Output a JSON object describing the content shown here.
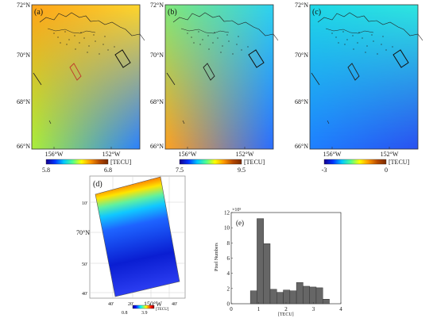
{
  "panels": [
    {
      "label": "(a)",
      "lat_ticks": [
        "72°N",
        "70°N",
        "68°N",
        "66°N"
      ],
      "lon_ticks": [
        "156°W",
        "152°W"
      ],
      "colorbar": {
        "min": "5.8",
        "max": "6.8",
        "unit": "[TECU]"
      },
      "gradient": {
        "nw": "#ffa319",
        "ne": "#ffd62a",
        "sw": "#a9ee3a",
        "se": "#2a80ff"
      }
    },
    {
      "label": "(b)",
      "lat_ticks": [
        "72°N",
        "70°N",
        "68°N",
        "66°N"
      ],
      "lon_ticks": [
        "156°W",
        "152°W"
      ],
      "colorbar": {
        "min": "7.5",
        "max": "9.5",
        "unit": "[TECU]"
      },
      "gradient": {
        "nw": "#7fe87a",
        "ne": "#2ed3f0",
        "sw": "#ffa020",
        "se": "#2a6cff"
      }
    },
    {
      "label": "(c)",
      "lat_ticks": [
        "72°N",
        "70°N",
        "68°N",
        "66°N"
      ],
      "lon_ticks": [
        "156°W",
        "152°W"
      ],
      "colorbar": {
        "min": "-3",
        "max": "0",
        "unit": "[TECU]"
      },
      "gradient": {
        "nw": "#1fd8e6",
        "ne": "#2ee6e0",
        "sw": "#1e7fff",
        "se": "#2a50f0"
      }
    }
  ],
  "strip": {
    "label": "(d)",
    "lat_ticks": [
      "10'",
      "70°N",
      "50'",
      "40'"
    ],
    "lon_ticks": [
      "40'",
      "20'",
      "150°W",
      "40'"
    ],
    "colorbar": {
      "min": "0.8",
      "max": "3.9",
      "unit": "[TECU]"
    }
  },
  "chart_data": {
    "type": "bar",
    "label": "(e)",
    "exponent_label": "×10⁵",
    "ylabel": "Pixel Numbers",
    "xlabel": "[TECU]",
    "xlim": [
      0,
      4
    ],
    "ylim": [
      0,
      12
    ],
    "x_ticks": [
      "0",
      "1",
      "2",
      "3",
      "4"
    ],
    "y_ticks": [
      "0",
      "2",
      "4",
      "6",
      "8",
      "10",
      "12"
    ],
    "bins": [
      {
        "x0": 0.7,
        "x1": 0.94,
        "value": 1.7
      },
      {
        "x0": 0.94,
        "x1": 1.18,
        "value": 11.2
      },
      {
        "x0": 1.18,
        "x1": 1.42,
        "value": 7.9
      },
      {
        "x0": 1.42,
        "x1": 1.66,
        "value": 1.9
      },
      {
        "x0": 1.66,
        "x1": 1.9,
        "value": 1.5
      },
      {
        "x0": 1.9,
        "x1": 2.14,
        "value": 1.8
      },
      {
        "x0": 2.14,
        "x1": 2.38,
        "value": 1.7
      },
      {
        "x0": 2.38,
        "x1": 2.62,
        "value": 2.8
      },
      {
        "x0": 2.62,
        "x1": 2.86,
        "value": 2.3
      },
      {
        "x0": 2.86,
        "x1": 3.1,
        "value": 2.2
      },
      {
        "x0": 3.1,
        "x1": 3.34,
        "value": 2.1
      },
      {
        "x0": 3.34,
        "x1": 3.58,
        "value": 0.6
      }
    ],
    "bar_color": "#666666"
  }
}
